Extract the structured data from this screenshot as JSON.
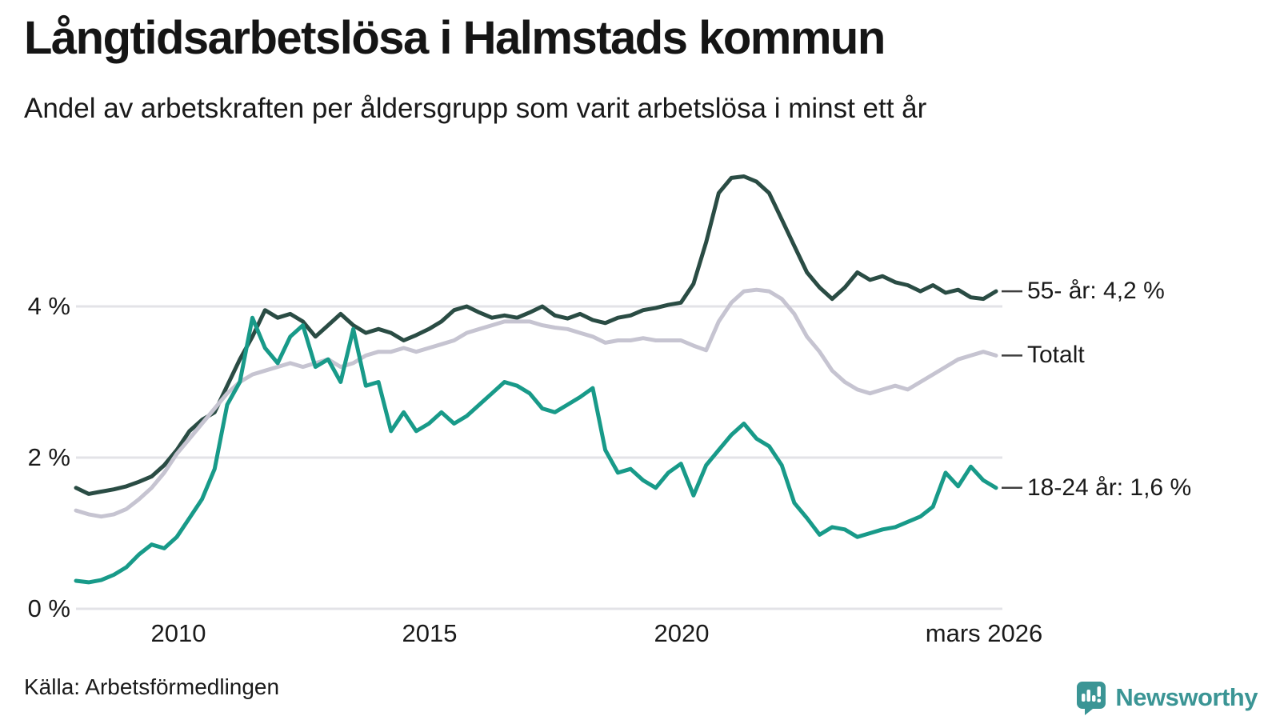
{
  "chart_data": {
    "type": "line",
    "title": "Långtidsarbetslösa i Halmstads kommun",
    "subtitle": "Andel av arbetskraften per åldersgrupp som varit arbetslösa i minst ett år",
    "x_domain": [
      2008,
      2026.25
    ],
    "y_domain": [
      0,
      6
    ],
    "grid": "horizontal-only",
    "legend_position": "right-end-labels",
    "y_ticks": [
      {
        "value": 0,
        "label": "0 %"
      },
      {
        "value": 2,
        "label": "2 %"
      },
      {
        "value": 4,
        "label": "4 %"
      }
    ],
    "x_ticks": [
      {
        "value": 2010,
        "label": "2010"
      },
      {
        "value": 2015,
        "label": "2015"
      },
      {
        "value": 2020,
        "label": "2020"
      },
      {
        "value": 2026.2,
        "label": "mars 2026"
      }
    ],
    "series": [
      {
        "name": "55- år",
        "end_label": "55- år: 4,2 %",
        "color": "#2a4c44",
        "points": [
          [
            2008,
            1.6
          ],
          [
            2008.25,
            1.52
          ],
          [
            2008.5,
            1.55
          ],
          [
            2008.75,
            1.58
          ],
          [
            2009,
            1.62
          ],
          [
            2009.25,
            1.68
          ],
          [
            2009.5,
            1.75
          ],
          [
            2009.75,
            1.9
          ],
          [
            2010,
            2.1
          ],
          [
            2010.25,
            2.35
          ],
          [
            2010.5,
            2.5
          ],
          [
            2010.75,
            2.6
          ],
          [
            2011,
            2.95
          ],
          [
            2011.25,
            3.3
          ],
          [
            2011.5,
            3.6
          ],
          [
            2011.75,
            3.95
          ],
          [
            2012,
            3.85
          ],
          [
            2012.25,
            3.9
          ],
          [
            2012.5,
            3.8
          ],
          [
            2012.75,
            3.6
          ],
          [
            2013,
            3.75
          ],
          [
            2013.25,
            3.9
          ],
          [
            2013.5,
            3.75
          ],
          [
            2013.75,
            3.65
          ],
          [
            2014,
            3.7
          ],
          [
            2014.25,
            3.65
          ],
          [
            2014.5,
            3.55
          ],
          [
            2014.75,
            3.62
          ],
          [
            2015,
            3.7
          ],
          [
            2015.25,
            3.8
          ],
          [
            2015.5,
            3.95
          ],
          [
            2015.75,
            4.0
          ],
          [
            2016,
            3.92
          ],
          [
            2016.25,
            3.85
          ],
          [
            2016.5,
            3.88
          ],
          [
            2016.75,
            3.85
          ],
          [
            2017,
            3.92
          ],
          [
            2017.25,
            4.0
          ],
          [
            2017.5,
            3.88
          ],
          [
            2017.75,
            3.84
          ],
          [
            2018,
            3.9
          ],
          [
            2018.25,
            3.82
          ],
          [
            2018.5,
            3.78
          ],
          [
            2018.75,
            3.85
          ],
          [
            2019,
            3.88
          ],
          [
            2019.25,
            3.95
          ],
          [
            2019.5,
            3.98
          ],
          [
            2019.75,
            4.02
          ],
          [
            2020,
            4.05
          ],
          [
            2020.25,
            4.3
          ],
          [
            2020.5,
            4.85
          ],
          [
            2020.75,
            5.5
          ],
          [
            2021,
            5.7
          ],
          [
            2021.25,
            5.72
          ],
          [
            2021.5,
            5.65
          ],
          [
            2021.75,
            5.5
          ],
          [
            2022,
            5.15
          ],
          [
            2022.25,
            4.8
          ],
          [
            2022.5,
            4.45
          ],
          [
            2022.75,
            4.25
          ],
          [
            2023,
            4.1
          ],
          [
            2023.25,
            4.25
          ],
          [
            2023.5,
            4.45
          ],
          [
            2023.75,
            4.35
          ],
          [
            2024,
            4.4
          ],
          [
            2024.25,
            4.32
          ],
          [
            2024.5,
            4.28
          ],
          [
            2024.75,
            4.2
          ],
          [
            2025,
            4.28
          ],
          [
            2025.25,
            4.18
          ],
          [
            2025.5,
            4.22
          ],
          [
            2025.75,
            4.12
          ],
          [
            2026,
            4.1
          ],
          [
            2026.25,
            4.2
          ]
        ]
      },
      {
        "name": "Totalt",
        "end_label": "Totalt",
        "color": "#c6c4d1",
        "points": [
          [
            2008,
            1.3
          ],
          [
            2008.25,
            1.25
          ],
          [
            2008.5,
            1.22
          ],
          [
            2008.75,
            1.25
          ],
          [
            2009,
            1.32
          ],
          [
            2009.25,
            1.45
          ],
          [
            2009.5,
            1.6
          ],
          [
            2009.75,
            1.8
          ],
          [
            2010,
            2.05
          ],
          [
            2010.25,
            2.25
          ],
          [
            2010.5,
            2.45
          ],
          [
            2010.75,
            2.65
          ],
          [
            2011,
            2.85
          ],
          [
            2011.25,
            3.0
          ],
          [
            2011.5,
            3.1
          ],
          [
            2011.75,
            3.15
          ],
          [
            2012,
            3.2
          ],
          [
            2012.25,
            3.25
          ],
          [
            2012.5,
            3.2
          ],
          [
            2012.75,
            3.25
          ],
          [
            2013,
            3.3
          ],
          [
            2013.25,
            3.2
          ],
          [
            2013.5,
            3.25
          ],
          [
            2013.75,
            3.35
          ],
          [
            2014,
            3.4
          ],
          [
            2014.25,
            3.4
          ],
          [
            2014.5,
            3.45
          ],
          [
            2014.75,
            3.4
          ],
          [
            2015,
            3.45
          ],
          [
            2015.25,
            3.5
          ],
          [
            2015.5,
            3.55
          ],
          [
            2015.75,
            3.65
          ],
          [
            2016,
            3.7
          ],
          [
            2016.25,
            3.75
          ],
          [
            2016.5,
            3.8
          ],
          [
            2016.75,
            3.8
          ],
          [
            2017,
            3.8
          ],
          [
            2017.25,
            3.75
          ],
          [
            2017.5,
            3.72
          ],
          [
            2017.75,
            3.7
          ],
          [
            2018,
            3.65
          ],
          [
            2018.25,
            3.6
          ],
          [
            2018.5,
            3.52
          ],
          [
            2018.75,
            3.55
          ],
          [
            2019,
            3.55
          ],
          [
            2019.25,
            3.58
          ],
          [
            2019.5,
            3.55
          ],
          [
            2019.75,
            3.55
          ],
          [
            2020,
            3.55
          ],
          [
            2020.25,
            3.48
          ],
          [
            2020.5,
            3.42
          ],
          [
            2020.75,
            3.8
          ],
          [
            2021,
            4.05
          ],
          [
            2021.25,
            4.2
          ],
          [
            2021.5,
            4.22
          ],
          [
            2021.75,
            4.2
          ],
          [
            2022,
            4.1
          ],
          [
            2022.25,
            3.9
          ],
          [
            2022.5,
            3.6
          ],
          [
            2022.75,
            3.4
          ],
          [
            2023,
            3.15
          ],
          [
            2023.25,
            3.0
          ],
          [
            2023.5,
            2.9
          ],
          [
            2023.75,
            2.85
          ],
          [
            2024,
            2.9
          ],
          [
            2024.25,
            2.95
          ],
          [
            2024.5,
            2.9
          ],
          [
            2024.75,
            3.0
          ],
          [
            2025,
            3.1
          ],
          [
            2025.25,
            3.2
          ],
          [
            2025.5,
            3.3
          ],
          [
            2025.75,
            3.35
          ],
          [
            2026,
            3.4
          ],
          [
            2026.25,
            3.35
          ]
        ]
      },
      {
        "name": "18-24 år",
        "end_label": "18-24 år: 1,6 %",
        "color": "#189a89",
        "points": [
          [
            2008,
            0.37
          ],
          [
            2008.25,
            0.35
          ],
          [
            2008.5,
            0.38
          ],
          [
            2008.75,
            0.45
          ],
          [
            2009,
            0.55
          ],
          [
            2009.25,
            0.72
          ],
          [
            2009.5,
            0.85
          ],
          [
            2009.75,
            0.8
          ],
          [
            2010,
            0.95
          ],
          [
            2010.25,
            1.2
          ],
          [
            2010.5,
            1.45
          ],
          [
            2010.75,
            1.85
          ],
          [
            2011,
            2.7
          ],
          [
            2011.25,
            3.0
          ],
          [
            2011.5,
            3.85
          ],
          [
            2011.75,
            3.45
          ],
          [
            2012,
            3.25
          ],
          [
            2012.25,
            3.6
          ],
          [
            2012.5,
            3.75
          ],
          [
            2012.75,
            3.2
          ],
          [
            2013,
            3.3
          ],
          [
            2013.25,
            3.0
          ],
          [
            2013.5,
            3.7
          ],
          [
            2013.75,
            2.95
          ],
          [
            2014,
            3.0
          ],
          [
            2014.25,
            2.35
          ],
          [
            2014.5,
            2.6
          ],
          [
            2014.75,
            2.35
          ],
          [
            2015,
            2.45
          ],
          [
            2015.25,
            2.6
          ],
          [
            2015.5,
            2.45
          ],
          [
            2015.75,
            2.55
          ],
          [
            2016,
            2.7
          ],
          [
            2016.25,
            2.85
          ],
          [
            2016.5,
            3.0
          ],
          [
            2016.75,
            2.95
          ],
          [
            2017,
            2.85
          ],
          [
            2017.25,
            2.65
          ],
          [
            2017.5,
            2.6
          ],
          [
            2017.75,
            2.7
          ],
          [
            2018,
            2.8
          ],
          [
            2018.25,
            2.92
          ],
          [
            2018.5,
            2.1
          ],
          [
            2018.75,
            1.8
          ],
          [
            2019,
            1.85
          ],
          [
            2019.25,
            1.7
          ],
          [
            2019.5,
            1.6
          ],
          [
            2019.75,
            1.8
          ],
          [
            2020,
            1.92
          ],
          [
            2020.25,
            1.5
          ],
          [
            2020.5,
            1.9
          ],
          [
            2020.75,
            2.1
          ],
          [
            2021,
            2.3
          ],
          [
            2021.25,
            2.45
          ],
          [
            2021.5,
            2.25
          ],
          [
            2021.75,
            2.15
          ],
          [
            2022,
            1.9
          ],
          [
            2022.25,
            1.4
          ],
          [
            2022.5,
            1.2
          ],
          [
            2022.75,
            0.98
          ],
          [
            2023,
            1.08
          ],
          [
            2023.25,
            1.05
          ],
          [
            2023.5,
            0.95
          ],
          [
            2023.75,
            1.0
          ],
          [
            2024,
            1.05
          ],
          [
            2024.25,
            1.08
          ],
          [
            2024.5,
            1.15
          ],
          [
            2024.75,
            1.22
          ],
          [
            2025,
            1.35
          ],
          [
            2025.25,
            1.8
          ],
          [
            2025.5,
            1.62
          ],
          [
            2025.75,
            1.88
          ],
          [
            2026,
            1.7
          ],
          [
            2026.25,
            1.6
          ]
        ]
      }
    ]
  },
  "footer": {
    "source": "Källa: Arbetsförmedlingen",
    "brand": "Newsworthy"
  },
  "colors": {
    "grid": "#e3e3e7",
    "leader_tick": "#3f3f3f",
    "brand_teal": "#3b9595",
    "text": "#1a1a1a"
  }
}
